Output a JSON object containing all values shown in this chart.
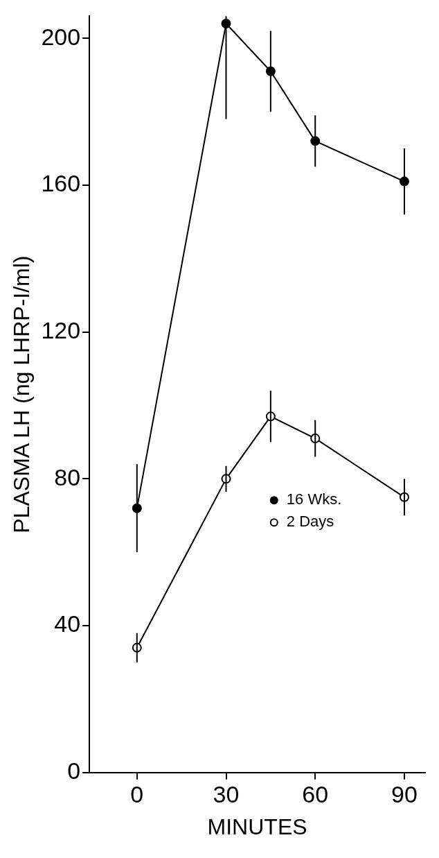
{
  "chart_data": {
    "type": "line",
    "xlabel": "MINUTES",
    "ylabel": "PLASMA LH (ng LHRP-I/ml)",
    "xlim": [
      -16,
      97
    ],
    "xticks": [
      0,
      30,
      60,
      90
    ],
    "ylim": [
      0,
      206
    ],
    "yticks": [
      0,
      40,
      80,
      120,
      160,
      200
    ],
    "grid": false,
    "legend": "right",
    "marker": "circle",
    "line_style": "solid",
    "series": [
      {
        "name": "16 Wks.",
        "color": "#000000",
        "x": [
          0,
          30,
          45,
          60,
          90
        ],
        "values": [
          72,
          204,
          191,
          172,
          161
        ],
        "errors": [
          12,
          [
            178,
            206
          ],
          11,
          7,
          9
        ]
      },
      {
        "name": "2 Days",
        "color": "#000000",
        "x": [
          0,
          30,
          45,
          60,
          90
        ],
        "values": [
          34,
          80,
          97,
          91,
          75
        ],
        "errors": [
          4,
          3.5,
          7,
          5,
          5
        ]
      }
    ]
  }
}
